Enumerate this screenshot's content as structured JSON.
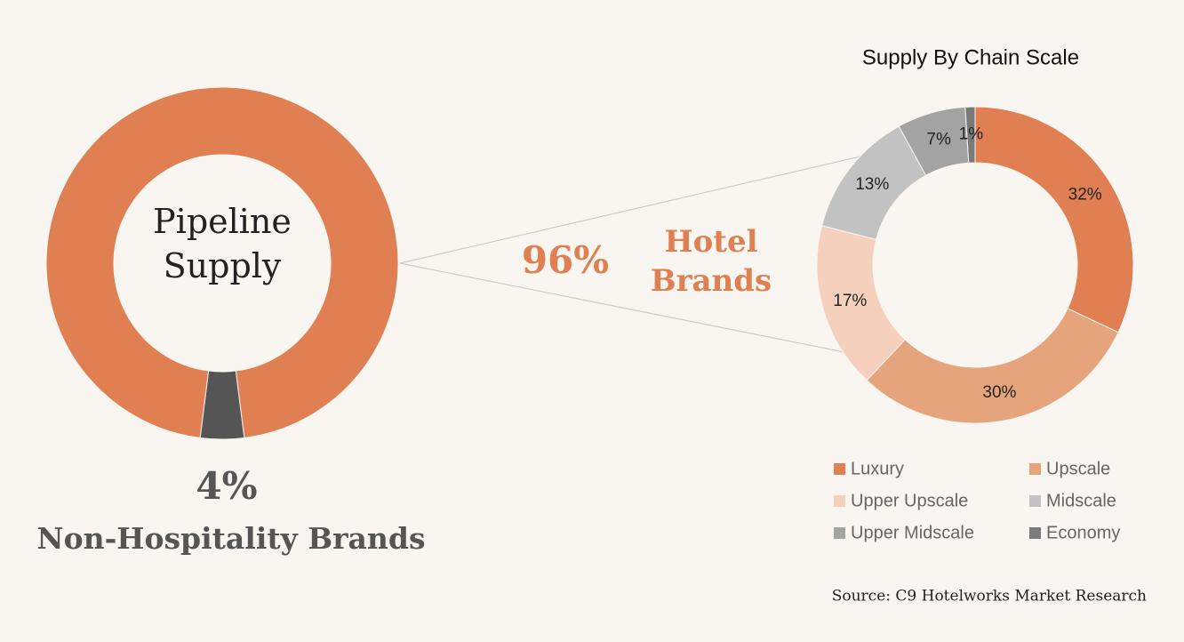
{
  "chart_data": [
    {
      "type": "donut",
      "center_label": "Pipeline Supply",
      "categories": [
        "Hotel Brands",
        "Non-Hospitality Brands"
      ],
      "values": [
        96,
        4
      ],
      "value_labels": [
        "96%",
        "4%"
      ],
      "colors": [
        "#e07f52",
        "#555555"
      ]
    },
    {
      "type": "donut",
      "title": "Supply By Chain Scale",
      "categories": [
        "Luxury",
        "Upscale",
        "Upper Upscale",
        "Midscale",
        "Upper Midscale",
        "Economy"
      ],
      "values": [
        32,
        30,
        17,
        13,
        7,
        1
      ],
      "value_labels": [
        "32%",
        "30%",
        "17%",
        "13%",
        "7%",
        "1%"
      ],
      "colors": [
        "#e07f52",
        "#e5a47c",
        "#f5d0bd",
        "#c2c2c2",
        "#a3a3a3",
        "#7a7a7a"
      ],
      "legend": "bottom"
    }
  ],
  "source": "Source: C9 Hotelworks Market Research"
}
